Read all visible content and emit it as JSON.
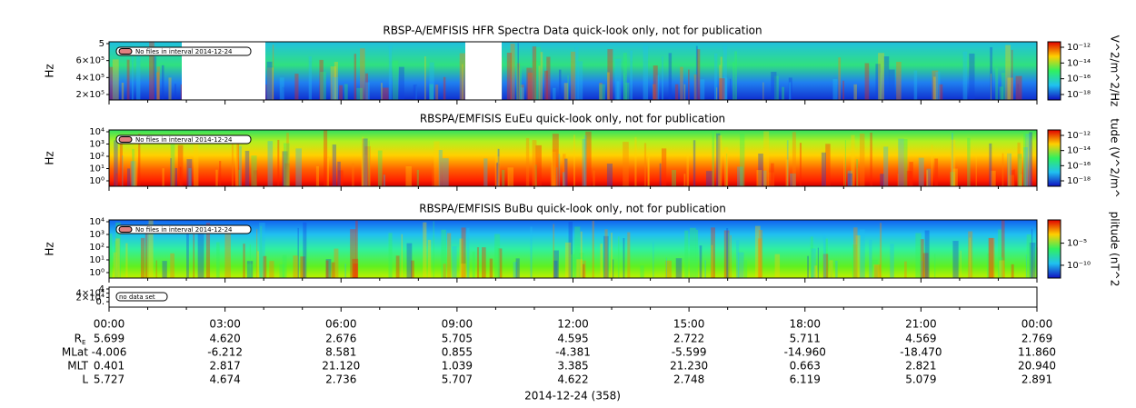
{
  "panels": [
    {
      "title": "RBSP-A/EMFISIS  HFR Spectra Data quick-look only, not for publication",
      "y_label": "Hz",
      "yticks": [
        "5",
        "6×10⁵",
        "4×10⁵",
        "2×10⁵"
      ],
      "note": "No files in interval 2014-12-24",
      "colorbar_label": "V^2/m^2/Hz",
      "colorbar_ticks": [
        "10⁻¹²",
        "10⁻¹⁴",
        "10⁻¹⁶",
        "10⁻¹⁸"
      ]
    },
    {
      "title": "RBSPA/EMFISIS  EuEu quick-look only, not for publication",
      "y_label": "Hz",
      "yticks": [
        "10⁴",
        "10³",
        "10²",
        "10¹",
        "10⁰"
      ],
      "note": "No files in interval 2014-12-24",
      "colorbar_label": "tude (V^2/m^",
      "colorbar_ticks": [
        "10⁻¹²",
        "10⁻¹⁴",
        "10⁻¹⁶",
        "10⁻¹⁸"
      ]
    },
    {
      "title": "RBSPA/EMFISIS  BuBu quick-look only, not for publication",
      "y_label": "Hz",
      "yticks": [
        "10⁴",
        "10³",
        "10²",
        "10¹",
        "10⁰"
      ],
      "note": "No files in interval 2014-12-24",
      "colorbar_label": "plitude (nT^2",
      "colorbar_ticks": [
        "10⁻⁵",
        "10⁻¹⁰"
      ]
    },
    {
      "yticks": [
        "4",
        "4×10⁴",
        "2×10⁴",
        "0."
      ],
      "note": "no data set"
    }
  ],
  "ephemeris": {
    "times": [
      "00:00",
      "03:00",
      "06:00",
      "09:00",
      "12:00",
      "15:00",
      "18:00",
      "21:00",
      "00:00"
    ],
    "rows": [
      {
        "label": "R",
        "label_sub": "E",
        "values": [
          "5.699",
          "4.620",
          "2.676",
          "5.705",
          "4.595",
          "2.722",
          "5.711",
          "4.569",
          "2.769"
        ]
      },
      {
        "label": "MLat",
        "values": [
          "-4.006",
          "-6.212",
          "8.581",
          "0.855",
          "-4.381",
          "-5.599",
          "-14.960",
          "-18.470",
          "11.860"
        ]
      },
      {
        "label": "MLT",
        "values": [
          "0.401",
          "2.817",
          "21.120",
          "1.039",
          "3.385",
          "21.230",
          "0.663",
          "2.821",
          "20.940"
        ]
      },
      {
        "label": "L",
        "values": [
          "5.727",
          "4.674",
          "2.736",
          "5.707",
          "4.622",
          "2.748",
          "6.119",
          "5.079",
          "2.891"
        ]
      }
    ],
    "date_label": "2014-12-24 (358)"
  }
}
